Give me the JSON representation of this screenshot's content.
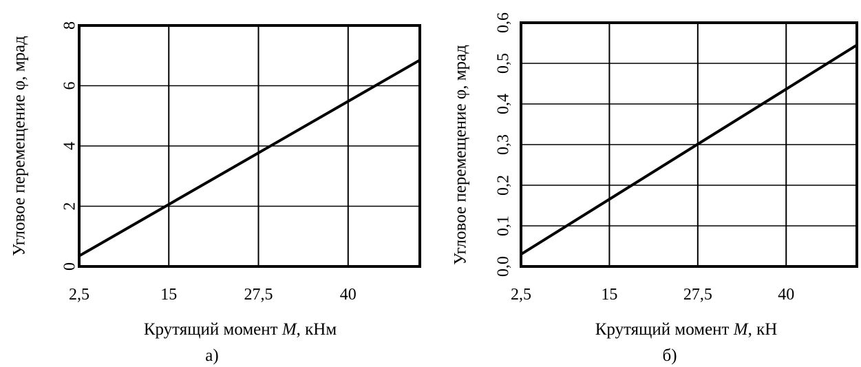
{
  "chart_data": [
    {
      "type": "line",
      "panel_label": "а)",
      "xlabel_pre": "Крутящий момент ",
      "xlabel_var": "M",
      "xlabel_post": ", кНм",
      "ylabel": "Угловое перемещение φ,  мрад",
      "xlim": [
        2.5,
        50
      ],
      "ylim": [
        0,
        8
      ],
      "x_ticks": [
        2.5,
        15,
        27.5,
        40
      ],
      "x_tick_labels": [
        "2,5",
        "15",
        "27,5",
        "40"
      ],
      "y_ticks": [
        0,
        2,
        4,
        6,
        8
      ],
      "y_tick_labels": [
        "0",
        "2",
        "4",
        "6",
        "8"
      ],
      "grid": true,
      "series": [
        {
          "x": [
            2.5,
            50
          ],
          "y": [
            0.35,
            6.85
          ]
        }
      ]
    },
    {
      "type": "line",
      "panel_label": "б)",
      "xlabel_pre": "Крутящий момент ",
      "xlabel_var": "M",
      "xlabel_post": ", кН",
      "ylabel": "Угловое перемещение φ, мрад",
      "xlim": [
        2.5,
        50
      ],
      "ylim": [
        0,
        0.6
      ],
      "x_ticks": [
        2.5,
        15,
        27.5,
        40
      ],
      "x_tick_labels": [
        "2,5",
        "15",
        "27,5",
        "40"
      ],
      "y_ticks": [
        0,
        0.1,
        0.2,
        0.3,
        0.4,
        0.5,
        0.6
      ],
      "y_tick_labels": [
        "0,0",
        "0,1",
        "0,2",
        "0,3",
        "0,4",
        "0,5",
        "0,6"
      ],
      "grid": true,
      "series": [
        {
          "x": [
            2.5,
            50
          ],
          "y": [
            0.03,
            0.545
          ]
        }
      ]
    }
  ]
}
